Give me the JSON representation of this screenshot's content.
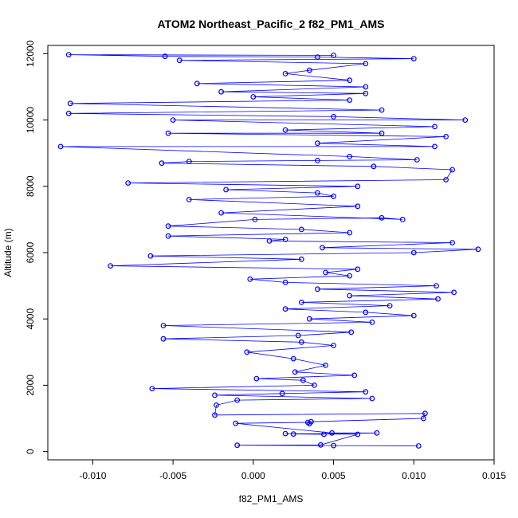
{
  "chart_data": {
    "type": "scatter",
    "title": "ATOM2 Northeast_Pacific_2 f82_PM1_AMS",
    "xlabel": "f82_PM1_AMS",
    "ylabel": "Altitude (m)",
    "xlim": [
      -0.0128,
      0.015
    ],
    "ylim": [
      -250,
      12250
    ],
    "xticks": [
      -0.01,
      -0.005,
      0.0,
      0.005,
      0.01,
      0.015
    ],
    "xtick_labels": [
      "-0.010",
      "-0.005",
      "0.000",
      "0.005",
      "0.010",
      "0.015"
    ],
    "yticks": [
      0,
      2000,
      4000,
      6000,
      8000,
      10000,
      12000
    ],
    "ytick_labels": [
      "0",
      "2000",
      "4000",
      "6000",
      "8000",
      "10000",
      "12000"
    ],
    "grid": false,
    "legend": "none",
    "connected": true,
    "marker": "open-circle",
    "color": "#0000ff",
    "series": [
      {
        "points": [
          [
            0.0103,
            170
          ],
          [
            0.005,
            180
          ],
          [
            -0.001,
            190
          ],
          [
            0.0042,
            200
          ],
          [
            0.0065,
            520
          ],
          [
            0.002,
            540
          ],
          [
            0.0044,
            520
          ],
          [
            0.0025,
            530
          ],
          [
            0.0077,
            560
          ],
          [
            0.0049,
            560
          ],
          [
            -0.0011,
            850
          ],
          [
            0.0034,
            880
          ],
          [
            0.0035,
            840
          ],
          [
            0.0036,
            900
          ],
          [
            0.0106,
            1000
          ],
          [
            0.0107,
            1150
          ],
          [
            -0.0024,
            1100
          ],
          [
            -0.0023,
            1400
          ],
          [
            -0.001,
            1550
          ],
          [
            0.0074,
            1600
          ],
          [
            -0.0024,
            1700
          ],
          [
            0.0018,
            1750
          ],
          [
            0.007,
            1800
          ],
          [
            -0.0063,
            1900
          ],
          [
            0.0038,
            2000
          ],
          [
            0.0031,
            2150
          ],
          [
            0.0002,
            2200
          ],
          [
            0.0063,
            2300
          ],
          [
            0.0026,
            2400
          ],
          [
            0.0045,
            2600
          ],
          [
            0.0025,
            2800
          ],
          [
            -0.0004,
            3000
          ],
          [
            0.005,
            3200
          ],
          [
            0.003,
            3300
          ],
          [
            -0.0056,
            3400
          ],
          [
            0.0028,
            3500
          ],
          [
            0.0061,
            3600
          ],
          [
            -0.0056,
            3800
          ],
          [
            0.0074,
            3900
          ],
          [
            0.0035,
            4000
          ],
          [
            0.01,
            4100
          ],
          [
            0.007,
            4200
          ],
          [
            0.002,
            4300
          ],
          [
            0.0085,
            4400
          ],
          [
            0.003,
            4500
          ],
          [
            0.0115,
            4600
          ],
          [
            0.006,
            4700
          ],
          [
            0.0125,
            4800
          ],
          [
            0.004,
            4900
          ],
          [
            0.0114,
            5000
          ],
          [
            0.002,
            5100
          ],
          [
            -0.0002,
            5200
          ],
          [
            0.006,
            5300
          ],
          [
            0.0045,
            5400
          ],
          [
            0.0065,
            5500
          ],
          [
            -0.0089,
            5600
          ],
          [
            0.003,
            5800
          ],
          [
            -0.0064,
            5900
          ],
          [
            0.01,
            6000
          ],
          [
            0.014,
            6100
          ],
          [
            0.0043,
            6150
          ],
          [
            0.0124,
            6300
          ],
          [
            0.001,
            6350
          ],
          [
            0.002,
            6400
          ],
          [
            -0.0053,
            6500
          ],
          [
            0.006,
            6600
          ],
          [
            0.003,
            6700
          ],
          [
            -0.0053,
            6800
          ],
          [
            0.0001,
            7000
          ],
          [
            0.008,
            7050
          ],
          [
            0.0093,
            7000
          ],
          [
            -0.002,
            7200
          ],
          [
            0.0065,
            7400
          ],
          [
            -0.004,
            7600
          ],
          [
            0.005,
            7700
          ],
          [
            0.004,
            7800
          ],
          [
            -0.0017,
            7900
          ],
          [
            0.0065,
            8000
          ],
          [
            -0.0078,
            8100
          ],
          [
            0.012,
            8200
          ],
          [
            0.0124,
            8500
          ],
          [
            0.0075,
            8600
          ],
          [
            -0.0057,
            8700
          ],
          [
            -0.004,
            8750
          ],
          [
            0.004,
            8780
          ],
          [
            0.0102,
            8800
          ],
          [
            0.006,
            8900
          ],
          [
            -0.012,
            9200
          ],
          [
            0.0113,
            9200
          ],
          [
            0.004,
            9300
          ],
          [
            0.012,
            9500
          ],
          [
            -0.0053,
            9600
          ],
          [
            0.008,
            9600
          ],
          [
            0.002,
            9700
          ],
          [
            0.0113,
            9800
          ],
          [
            -0.005,
            10000
          ],
          [
            0.0132,
            10000
          ],
          [
            0.005,
            10100
          ],
          [
            -0.0115,
            10200
          ],
          [
            0.008,
            10300
          ],
          [
            -0.0114,
            10500
          ],
          [
            0.006,
            10600
          ],
          [
            0.0,
            10700
          ],
          [
            0.007,
            10800
          ],
          [
            -0.002,
            10850
          ],
          [
            0.007,
            11000
          ],
          [
            -0.0035,
            11100
          ],
          [
            0.006,
            11200
          ],
          [
            0.002,
            11400
          ],
          [
            0.0035,
            11500
          ],
          [
            0.007,
            11700
          ],
          [
            -0.0046,
            11800
          ],
          [
            0.01,
            11850
          ],
          [
            0.004,
            11900
          ],
          [
            -0.0055,
            11920
          ],
          [
            -0.0115,
            11970
          ],
          [
            0.005,
            11950
          ]
        ]
      }
    ]
  }
}
